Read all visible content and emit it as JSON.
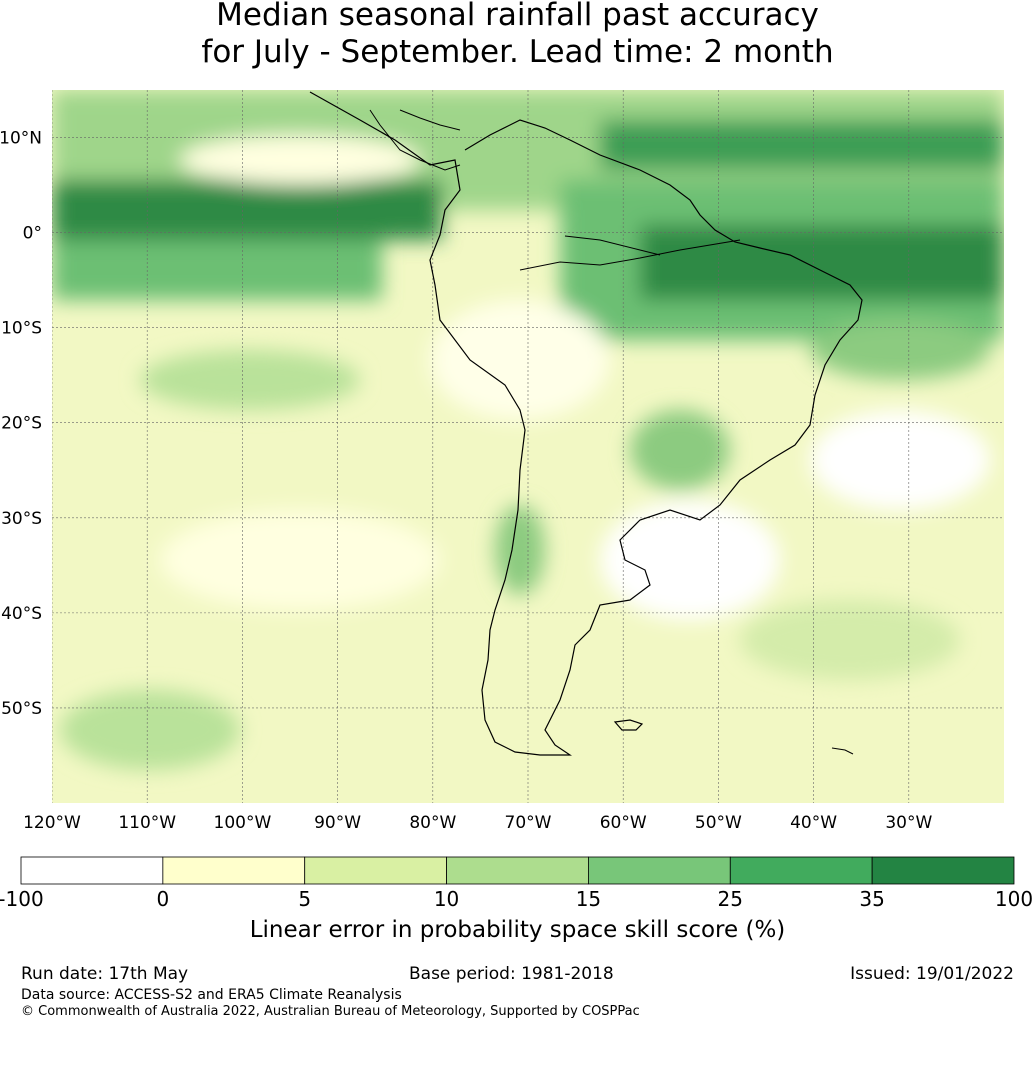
{
  "title_line1": "Median seasonal rainfall past accuracy",
  "title_line2": "for July - September. Lead time: 2 month",
  "map": {
    "lon_range": [
      -120,
      -20
    ],
    "lat_range": [
      -60,
      15
    ],
    "lon_ticks": [
      "120°W",
      "110°W",
      "100°W",
      "90°W",
      "80°W",
      "70°W",
      "60°W",
      "50°W",
      "40°W",
      "30°W"
    ],
    "lat_ticks": [
      "10°N",
      "0°",
      "10°S",
      "20°S",
      "30°S",
      "40°S",
      "50°S"
    ],
    "region": "South America"
  },
  "colorbar": {
    "title": "Linear error in probability space skill score (%)",
    "boundaries": [
      "-100",
      "0",
      "5",
      "10",
      "15",
      "25",
      "35",
      "100"
    ],
    "colors": [
      "#ffffff",
      "#ffffcc",
      "#d9f0a3",
      "#addd8e",
      "#78c679",
      "#41ab5d",
      "#238443"
    ]
  },
  "footer": {
    "run_date": "Run date: 17th May",
    "base_period": "Base period: 1981-2018",
    "issued": "Issued: 19/01/2022",
    "data_source": "Data source: ACCESS-S2 and ERA5 Climate Reanalysis",
    "copyright": "© Commonwealth of Australia 2022, Australian Bureau of Meteorology, Supported by COSPPac"
  }
}
